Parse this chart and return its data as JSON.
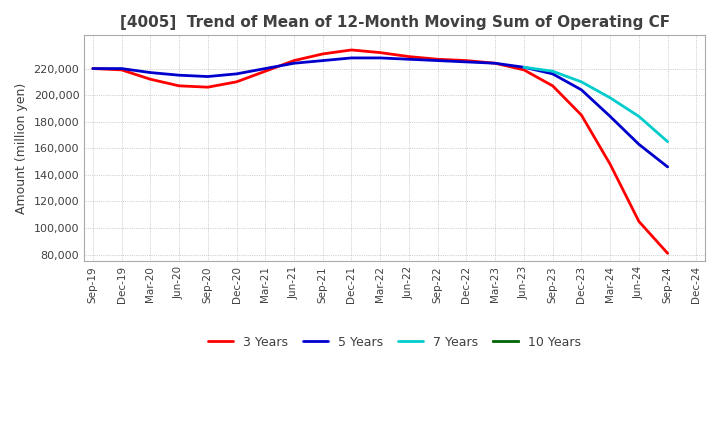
{
  "title": "[4005]  Trend of Mean of 12-Month Moving Sum of Operating CF",
  "ylabel": "Amount (million yen)",
  "background_color": "#ffffff",
  "grid_color": "#aaaaaa",
  "title_color": "#404040",
  "label_color": "#404040",
  "lines": {
    "3 Years": {
      "color": "#ff0000",
      "data": [
        [
          "Sep-19",
          220000
        ],
        [
          "Dec-19",
          219000
        ],
        [
          "Mar-20",
          212000
        ],
        [
          "Jun-20",
          207000
        ],
        [
          "Sep-20",
          206000
        ],
        [
          "Dec-20",
          210000
        ],
        [
          "Mar-21",
          218000
        ],
        [
          "Jun-21",
          226000
        ],
        [
          "Sep-21",
          231000
        ],
        [
          "Dec-21",
          234000
        ],
        [
          "Mar-22",
          232000
        ],
        [
          "Jun-22",
          229000
        ],
        [
          "Sep-22",
          227000
        ],
        [
          "Dec-22",
          226000
        ],
        [
          "Mar-23",
          224000
        ],
        [
          "Jun-23",
          219000
        ],
        [
          "Sep-23",
          207000
        ],
        [
          "Dec-23",
          185000
        ],
        [
          "Mar-24",
          148000
        ],
        [
          "Jun-24",
          105000
        ],
        [
          "Sep-24",
          81000
        ]
      ]
    },
    "5 Years": {
      "color": "#0000cc",
      "data": [
        [
          "Sep-19",
          220000
        ],
        [
          "Dec-19",
          220000
        ],
        [
          "Mar-20",
          217000
        ],
        [
          "Jun-20",
          215000
        ],
        [
          "Sep-20",
          214000
        ],
        [
          "Dec-20",
          216000
        ],
        [
          "Mar-21",
          220000
        ],
        [
          "Jun-21",
          224000
        ],
        [
          "Sep-21",
          226000
        ],
        [
          "Dec-21",
          228000
        ],
        [
          "Mar-22",
          228000
        ],
        [
          "Jun-22",
          227000
        ],
        [
          "Sep-22",
          226000
        ],
        [
          "Dec-22",
          225000
        ],
        [
          "Mar-23",
          224000
        ],
        [
          "Jun-23",
          221000
        ],
        [
          "Sep-23",
          216000
        ],
        [
          "Dec-23",
          204000
        ],
        [
          "Mar-24",
          184000
        ],
        [
          "Jun-24",
          163000
        ],
        [
          "Sep-24",
          146000
        ]
      ]
    },
    "7 Years": {
      "color": "#00cccc",
      "data": [
        [
          "Jun-23",
          221000
        ],
        [
          "Sep-23",
          218000
        ],
        [
          "Dec-23",
          210000
        ],
        [
          "Mar-24",
          198000
        ],
        [
          "Jun-24",
          184000
        ],
        [
          "Sep-24",
          165000
        ]
      ]
    },
    "10 Years": {
      "color": "#006600",
      "data": []
    }
  },
  "ylim": [
    75000,
    245000
  ],
  "yticks": [
    80000,
    100000,
    120000,
    140000,
    160000,
    180000,
    200000,
    220000
  ],
  "xtick_labels": [
    "Sep-19",
    "Dec-19",
    "Mar-20",
    "Jun-20",
    "Sep-20",
    "Dec-20",
    "Mar-21",
    "Jun-21",
    "Sep-21",
    "Dec-21",
    "Mar-22",
    "Jun-22",
    "Sep-22",
    "Dec-22",
    "Mar-23",
    "Jun-23",
    "Sep-23",
    "Dec-23",
    "Mar-24",
    "Jun-24",
    "Sep-24",
    "Dec-24"
  ],
  "legend_labels": [
    "3 Years",
    "5 Years",
    "7 Years",
    "10 Years"
  ],
  "legend_colors": [
    "#ff0000",
    "#0000cc",
    "#00cccc",
    "#006600"
  ],
  "figsize": [
    7.2,
    4.4
  ],
  "dpi": 100
}
